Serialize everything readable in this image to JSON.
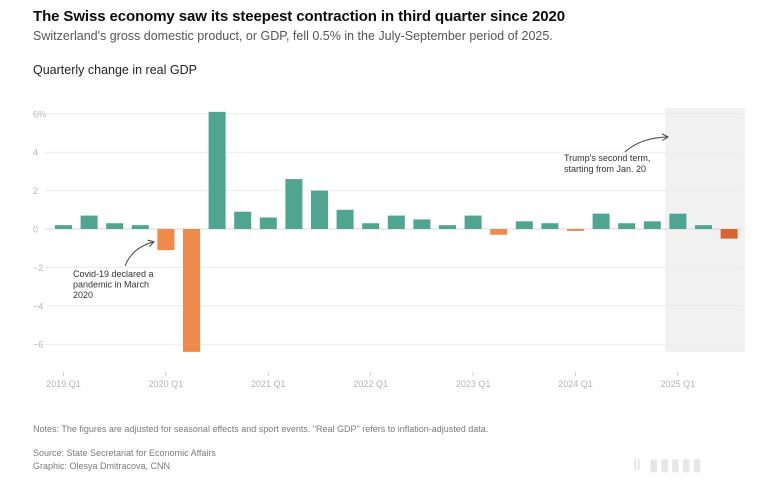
{
  "header": {
    "title": "The Swiss economy saw its steepest contraction in third quarter since 2020",
    "subtitle": "Switzerland's gross domestic product, or GDP, fell 0.5% in the July-September period of 2025.",
    "chart_label": "Quarterly change in real GDP"
  },
  "footer": {
    "notes": "Notes: The figures are adjusted for seasonal effects and sport events. \"Real GDP\" refers to inflation-adjusted data.",
    "source": "Source: State Secretariat for Economic Affairs",
    "graphic": "Graphic: Olesya Dmitracova, CNN",
    "watermark": "‖ ▮▮▮▮▮"
  },
  "colors": {
    "positive": "#4fa58f",
    "negative": "#f08a4b",
    "latest_negative": "#d9652e",
    "shade": "#f1f1f1",
    "grid": "#ececec",
    "axis_text": "#b5b5b5"
  },
  "chart_data": {
    "type": "bar",
    "title": "Quarterly change in real GDP",
    "xlabel": "",
    "ylabel": "",
    "ylim": [
      -7,
      6.5
    ],
    "yticks": [
      6,
      4,
      2,
      0,
      -2,
      -4,
      -6
    ],
    "ytick_labels": [
      "6%",
      "4",
      "2",
      "0",
      "−2",
      "−4",
      "−6"
    ],
    "grid": true,
    "categories": [
      "2019 Q1",
      "2019 Q2",
      "2019 Q3",
      "2019 Q4",
      "2020 Q1",
      "2020 Q2",
      "2020 Q3",
      "2020 Q4",
      "2021 Q1",
      "2021 Q2",
      "2021 Q3",
      "2021 Q4",
      "2022 Q1",
      "2022 Q2",
      "2022 Q3",
      "2022 Q4",
      "2023 Q1",
      "2023 Q2",
      "2023 Q3",
      "2023 Q4",
      "2024 Q1",
      "2024 Q2",
      "2024 Q3",
      "2024 Q4",
      "2025 Q1",
      "2025 Q2",
      "2025 Q3"
    ],
    "values": [
      0.2,
      0.7,
      0.3,
      0.2,
      -1.1,
      -6.4,
      6.1,
      0.9,
      0.6,
      2.6,
      2.0,
      1.0,
      0.3,
      0.7,
      0.5,
      0.2,
      0.7,
      -0.3,
      0.4,
      0.3,
      -0.1,
      0.8,
      0.3,
      0.4,
      0.8,
      0.2,
      -0.5
    ],
    "xtick_labels": [
      "2019 Q1",
      "2020 Q1",
      "2021 Q1",
      "2022 Q1",
      "2023 Q1",
      "2024 Q1",
      "2025 Q1"
    ],
    "shaded_region": {
      "from": "2025 Q1",
      "to": "2025 Q3",
      "label": "Trump's second term"
    },
    "annotations": [
      {
        "target": "2020 Q1",
        "text_lines": [
          "Covid-19 declared a",
          "pandemic in March",
          "2020"
        ]
      },
      {
        "target": "2025 Q1",
        "text_lines": [
          "Trump's second term,",
          "starting from Jan. 20"
        ]
      }
    ]
  }
}
